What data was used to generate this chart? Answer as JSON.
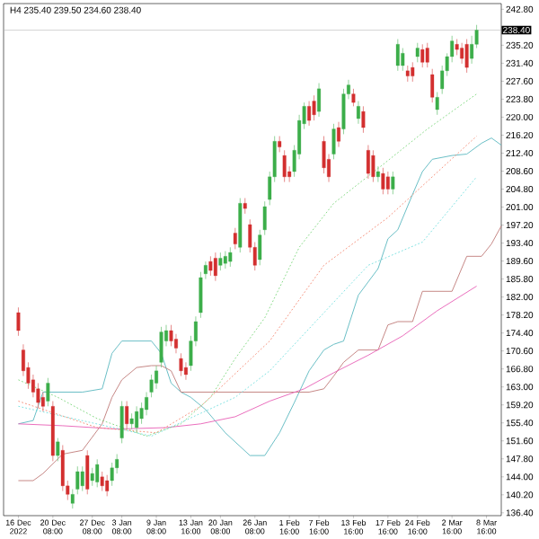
{
  "chart_data": {
    "type": "candlestick",
    "title": "H4 235.40 239.50 234.60 238.40",
    "categories": [
      "16 Dec 2022",
      null,
      null,
      null,
      null,
      null,
      null,
      "20 Dec 08:00",
      null,
      null,
      null,
      null,
      null,
      null,
      null,
      "27 Dec 08:00",
      null,
      null,
      null,
      null,
      null,
      "3 Jan 08:00",
      null,
      null,
      null,
      null,
      null,
      null,
      "9 Jan 08:00",
      null,
      null,
      null,
      null,
      null,
      null,
      "13 Jan 16:00",
      null,
      null,
      null,
      null,
      null,
      "20 Jan 08:00",
      null,
      null,
      null,
      null,
      null,
      null,
      "26 Jan 08:00",
      null,
      null,
      null,
      null,
      null,
      null,
      "1 Feb 16:00",
      null,
      null,
      null,
      null,
      null,
      "7 Feb 16:00",
      null,
      null,
      null,
      null,
      null,
      null,
      "13 Feb 16:00",
      null,
      null,
      null,
      null,
      null,
      null,
      "17 Feb 16:00",
      null,
      null,
      null,
      null,
      null,
      "24 Feb 16:00",
      null,
      null,
      null,
      null,
      null,
      null,
      "2 Mar 16:00",
      null,
      null,
      null,
      null,
      null,
      null,
      "8 Mar 16:00",
      null,
      null,
      null
    ],
    "ohlc": [
      [
        178.7,
        179.8,
        173.8,
        174.9
      ],
      [
        170.8,
        172.0,
        165.3,
        166.4
      ],
      [
        167.1,
        168.2,
        162.6,
        163.8
      ],
      [
        164.5,
        165.6,
        160.8,
        161.9
      ],
      [
        162.6,
        163.8,
        158.5,
        159.7
      ],
      [
        160.8,
        161.9,
        157.8,
        158.9
      ],
      [
        160.0,
        164.9,
        158.9,
        163.8
      ],
      [
        158.9,
        160.0,
        147.3,
        148.5
      ],
      [
        148.5,
        152.2,
        147.3,
        151.4
      ],
      [
        149.6,
        150.7,
        141.0,
        142.1
      ],
      [
        142.1,
        143.2,
        139.1,
        140.3
      ],
      [
        138.4,
        141.4,
        137.3,
        140.3
      ],
      [
        141.4,
        146.2,
        140.3,
        145.1
      ],
      [
        142.1,
        146.2,
        141.0,
        145.1
      ],
      [
        148.5,
        149.6,
        140.3,
        141.4
      ],
      [
        143.2,
        145.9,
        142.1,
        144.7
      ],
      [
        142.9,
        147.7,
        141.8,
        146.6
      ],
      [
        144.0,
        145.1,
        141.0,
        142.1
      ],
      [
        143.2,
        144.4,
        139.9,
        141.0
      ],
      [
        143.2,
        147.0,
        142.1,
        145.9
      ],
      [
        145.9,
        148.8,
        144.7,
        147.7
      ],
      [
        152.2,
        160.0,
        151.1,
        158.9
      ],
      [
        158.9,
        160.0,
        154.1,
        155.2
      ],
      [
        155.2,
        157.4,
        154.1,
        156.3
      ],
      [
        154.4,
        158.9,
        153.3,
        157.8
      ],
      [
        156.3,
        159.7,
        155.2,
        158.5
      ],
      [
        158.2,
        161.9,
        157.0,
        160.8
      ],
      [
        161.9,
        165.6,
        160.8,
        164.5
      ],
      [
        163.8,
        167.5,
        162.6,
        166.4
      ],
      [
        168.2,
        175.7,
        167.1,
        174.6
      ],
      [
        172.7,
        176.1,
        171.6,
        174.9
      ],
      [
        174.9,
        176.1,
        171.6,
        172.7
      ],
      [
        173.1,
        174.2,
        170.1,
        171.2
      ],
      [
        169.0,
        170.1,
        165.3,
        166.4
      ],
      [
        167.1,
        168.2,
        164.5,
        165.6
      ],
      [
        167.5,
        173.8,
        166.4,
        172.7
      ],
      [
        172.7,
        177.9,
        171.6,
        176.8
      ],
      [
        178.7,
        187.3,
        177.6,
        186.1
      ],
      [
        186.9,
        189.5,
        185.8,
        188.7
      ],
      [
        189.5,
        190.6,
        186.5,
        187.6
      ],
      [
        190.2,
        191.4,
        185.4,
        186.5
      ],
      [
        188.7,
        191.4,
        187.6,
        190.2
      ],
      [
        189.1,
        191.7,
        188.0,
        190.6
      ],
      [
        189.5,
        192.5,
        188.4,
        191.4
      ],
      [
        195.5,
        196.6,
        192.1,
        193.2
      ],
      [
        192.5,
        202.9,
        191.4,
        201.8
      ],
      [
        201.8,
        202.9,
        199.6,
        200.7
      ],
      [
        197.3,
        198.4,
        191.4,
        192.5
      ],
      [
        192.5,
        193.6,
        187.6,
        188.7
      ],
      [
        189.9,
        196.2,
        188.7,
        195.1
      ],
      [
        196.2,
        202.2,
        195.1,
        201.1
      ],
      [
        202.6,
        208.5,
        201.4,
        207.4
      ],
      [
        207.4,
        216.0,
        206.3,
        214.9
      ],
      [
        214.9,
        216.0,
        212.6,
        213.7
      ],
      [
        211.9,
        213.0,
        206.3,
        207.4
      ],
      [
        208.5,
        209.6,
        206.3,
        207.4
      ],
      [
        208.5,
        214.1,
        207.4,
        213.0
      ],
      [
        212.2,
        220.5,
        211.1,
        219.3
      ],
      [
        218.6,
        223.1,
        217.5,
        222.3
      ],
      [
        222.3,
        223.4,
        218.2,
        219.3
      ],
      [
        223.4,
        224.6,
        219.3,
        220.5
      ],
      [
        221.2,
        227.2,
        220.1,
        226.0
      ],
      [
        214.9,
        216.0,
        208.1,
        209.3
      ],
      [
        211.1,
        212.2,
        206.3,
        207.4
      ],
      [
        212.2,
        218.6,
        211.1,
        217.5
      ],
      [
        217.8,
        219.0,
        213.7,
        214.9
      ],
      [
        217.5,
        226.0,
        216.4,
        224.9
      ],
      [
        224.9,
        227.9,
        223.8,
        226.8
      ],
      [
        224.9,
        226.0,
        222.3,
        223.1
      ],
      [
        219.7,
        223.4,
        218.6,
        222.3
      ],
      [
        221.2,
        222.3,
        216.7,
        217.8
      ],
      [
        213.0,
        214.1,
        207.0,
        208.1
      ],
      [
        211.9,
        213.0,
        206.3,
        207.4
      ],
      [
        207.4,
        209.6,
        206.3,
        208.5
      ],
      [
        208.1,
        209.3,
        203.7,
        204.8
      ],
      [
        207.4,
        208.5,
        203.7,
        204.8
      ],
      [
        204.8,
        208.5,
        203.7,
        207.4
      ],
      [
        230.9,
        236.5,
        229.8,
        235.4
      ],
      [
        230.9,
        234.6,
        229.8,
        233.5
      ],
      [
        229.8,
        230.9,
        227.5,
        228.7
      ],
      [
        230.5,
        231.6,
        227.5,
        228.7
      ],
      [
        232.8,
        235.7,
        231.6,
        234.6
      ],
      [
        234.3,
        235.4,
        230.5,
        231.6
      ],
      [
        234.6,
        235.7,
        230.5,
        231.6
      ],
      [
        229.0,
        230.2,
        223.1,
        224.2
      ],
      [
        221.6,
        225.3,
        220.5,
        224.2
      ],
      [
        226.0,
        230.9,
        224.9,
        229.8
      ],
      [
        229.8,
        233.5,
        228.7,
        232.8
      ],
      [
        232.8,
        237.2,
        231.6,
        236.1
      ],
      [
        235.4,
        236.5,
        233.1,
        234.3
      ],
      [
        234.6,
        235.7,
        231.3,
        232.4
      ],
      [
        235.4,
        236.5,
        229.4,
        230.5
      ],
      [
        232.4,
        237.2,
        231.3,
        235.4
      ],
      [
        235.4,
        239.5,
        234.6,
        238.4
      ],
      null,
      null,
      null,
      null,
      null
    ],
    "colors": [
      "#d32f2f",
      "#d32f2f",
      "#d32f2f",
      "#d32f2f",
      "#d32f2f",
      "#d32f2f",
      "#3cae4a",
      "#d32f2f",
      "#3cae4a",
      "#d32f2f",
      "#d32f2f",
      "#3cae4a",
      "#3cae4a",
      "#3cae4a",
      "#d32f2f",
      "#3cae4a",
      "#3cae4a",
      "#d32f2f",
      "#d32f2f",
      "#3cae4a",
      "#3cae4a",
      "#3cae4a",
      "#d32f2f",
      "#3cae4a",
      "#3cae4a",
      "#3cae4a",
      "#3cae4a",
      "#3cae4a",
      "#3cae4a",
      "#3cae4a",
      "#3cae4a",
      "#d32f2f",
      "#d32f2f",
      "#d32f2f",
      "#d32f2f",
      "#3cae4a",
      "#3cae4a",
      "#3cae4a",
      "#3cae4a",
      "#d32f2f",
      "#d32f2f",
      "#3cae4a",
      "#3cae4a",
      "#3cae4a",
      "#d32f2f",
      "#3cae4a",
      "#d32f2f",
      "#d32f2f",
      "#d32f2f",
      "#3cae4a",
      "#3cae4a",
      "#3cae4a",
      "#3cae4a",
      "#d32f2f",
      "#d32f2f",
      "#d32f2f",
      "#3cae4a",
      "#3cae4a",
      "#3cae4a",
      "#d32f2f",
      "#d32f2f",
      "#3cae4a",
      "#d32f2f",
      "#d32f2f",
      "#3cae4a",
      "#d32f2f",
      "#3cae4a",
      "#3cae4a",
      "#d32f2f",
      "#3cae4a",
      "#d32f2f",
      "#d32f2f",
      "#d32f2f",
      "#3cae4a",
      "#d32f2f",
      "#d32f2f",
      "#3cae4a",
      "#3cae4a",
      "#3cae4a",
      "#d32f2f",
      "#d32f2f",
      "#3cae4a",
      "#d32f2f",
      "#d32f2f",
      "#d32f2f",
      "#3cae4a",
      "#3cae4a",
      "#3cae4a",
      "#3cae4a",
      "#d32f2f",
      "#d32f2f",
      "#d32f2f",
      "#3cae4a",
      "#3cae4a",
      null,
      null,
      null,
      null,
      null
    ],
    "series": [
      {
        "type": "line",
        "color": "#5ab8c0",
        "values": [
          155.2,
          null,
          null,
          155.9,
          null,
          161.9,
          null,
          null,
          null,
          161.9,
          null,
          null,
          null,
          161.9,
          null,
          null,
          null,
          162.6,
          null,
          170.1,
          null,
          172.7,
          null,
          null,
          172.7,
          null,
          null,
          172.7,
          null,
          170.1,
          null,
          163.8,
          null,
          161.9,
          null,
          160.8,
          null,
          null,
          158.2,
          null,
          null,
          null,
          153.3,
          null,
          null,
          null,
          null,
          148.5,
          null,
          null,
          148.5,
          null,
          null,
          153.3,
          null,
          null,
          159.7,
          null,
          null,
          166.4,
          null,
          null,
          170.8,
          null,
          172.0,
          null,
          172.7,
          null,
          null,
          182.4,
          null,
          null,
          null,
          188.0,
          null,
          194.3,
          null,
          196.2,
          null,
          null,
          203.7,
          null,
          208.5,
          null,
          211.1,
          null,
          null,
          null,
          211.9,
          null,
          null,
          212.2,
          null,
          null,
          214.5,
          null,
          215.6,
          null,
          214.1
        ]
      },
      {
        "type": "line",
        "color": "#c07a78",
        "values": [
          143.2,
          null,
          null,
          143.2,
          null,
          144.7,
          null,
          null,
          null,
          148.8,
          null,
          null,
          null,
          149.6,
          null,
          null,
          null,
          155.2,
          null,
          160.8,
          null,
          164.5,
          null,
          null,
          167.1,
          null,
          null,
          167.5,
          null,
          167.5,
          null,
          166.4,
          null,
          161.9,
          null,
          161.9,
          null,
          null,
          161.9,
          null,
          null,
          null,
          161.9,
          null,
          null,
          null,
          null,
          161.9,
          null,
          null,
          161.9,
          null,
          null,
          161.9,
          null,
          null,
          161.9,
          null,
          null,
          161.9,
          null,
          null,
          162.6,
          null,
          165.3,
          null,
          168.2,
          null,
          null,
          170.8,
          null,
          null,
          null,
          170.8,
          null,
          176.1,
          null,
          176.8,
          null,
          null,
          176.8,
          null,
          183.2,
          null,
          183.2,
          null,
          null,
          null,
          183.2,
          null,
          null,
          190.6,
          null,
          null,
          190.6,
          null,
          193.2,
          null,
          197.0
        ]
      },
      {
        "type": "line",
        "color": "#e85fb5",
        "line_style": "solid",
        "values": [
          155.2,
          null,
          null,
          null,
          null,
          null,
          null,
          null,
          null,
          154.8,
          null,
          null,
          null,
          null,
          null,
          null,
          null,
          null,
          null,
          null,
          154.1,
          null,
          null,
          null,
          null,
          null,
          null,
          null,
          null,
          null,
          154.4,
          null,
          null,
          null,
          null,
          null,
          null,
          155.2,
          null,
          null,
          null,
          null,
          null,
          null,
          156.7,
          null,
          null,
          null,
          null,
          null,
          null,
          160.0,
          null,
          null,
          null,
          null,
          null,
          null,
          162.6,
          null,
          null,
          null,
          null,
          null,
          166.0,
          null,
          null,
          null,
          null,
          null,
          null,
          169.7,
          null,
          null,
          null,
          null,
          null,
          null,
          173.8,
          null,
          null,
          null,
          null,
          null,
          null,
          179.1,
          null,
          null,
          null,
          null,
          null,
          null,
          null,
          184.3,
          null,
          null,
          null,
          null,
          null
        ]
      },
      {
        "type": "line",
        "color": "#7ad67a",
        "line_style": "dotted",
        "values": [
          164.5,
          null,
          null,
          null,
          null,
          null,
          null,
          null,
          160.8,
          null,
          null,
          null,
          null,
          null,
          null,
          null,
          156.3,
          null,
          null,
          null,
          null,
          null,
          null,
          null,
          null,
          null,
          152.6,
          null,
          null,
          null,
          null,
          null,
          null,
          155.2,
          null,
          null,
          null,
          null,
          null,
          160.8,
          null,
          null,
          null,
          null,
          169.0,
          null,
          null,
          null,
          null,
          null,
          177.6,
          null,
          null,
          null,
          null,
          null,
          null,
          192.5,
          null,
          null,
          null,
          null,
          null,
          null,
          201.8,
          null,
          null,
          null,
          null,
          null,
          null,
          null,
          null,
          null,
          210.0,
          null,
          null,
          null,
          null,
          null,
          null,
          null,
          null,
          217.5,
          null,
          null,
          null,
          null,
          null,
          null,
          null,
          null,
          null,
          224.9,
          null,
          null,
          null,
          null,
          null
        ]
      },
      {
        "type": "line",
        "color": "#f4866e",
        "line_style": "dotted",
        "values": [
          160.0,
          null,
          null,
          null,
          null,
          null,
          null,
          null,
          null,
          null,
          null,
          null,
          null,
          null,
          null,
          null,
          154.4,
          null,
          null,
          null,
          null,
          null,
          null,
          null,
          null,
          null,
          null,
          null,
          153.3,
          null,
          null,
          null,
          null,
          null,
          null,
          null,
          null,
          158.9,
          null,
          null,
          null,
          null,
          null,
          null,
          null,
          null,
          null,
          null,
          null,
          null,
          null,
          172.7,
          null,
          null,
          null,
          null,
          null,
          null,
          null,
          null,
          null,
          null,
          188.7,
          null,
          null,
          null,
          null,
          null,
          null,
          null,
          null,
          null,
          null,
          null,
          null,
          198.8,
          null,
          null,
          null,
          null,
          null,
          null,
          null,
          null,
          207.4,
          null,
          null,
          null,
          null,
          null,
          null,
          null,
          null,
          216.0,
          null,
          null,
          null,
          null,
          null
        ]
      },
      {
        "type": "line",
        "color": "#6fdede",
        "line_style": "dotted",
        "values": [
          158.9,
          null,
          null,
          null,
          null,
          null,
          null,
          null,
          null,
          null,
          null,
          null,
          null,
          null,
          null,
          null,
          null,
          null,
          null,
          null,
          null,
          null,
          null,
          null,
          null,
          null,
          null,
          152.6,
          null,
          null,
          null,
          null,
          null,
          null,
          null,
          null,
          null,
          null,
          null,
          null,
          null,
          null,
          null,
          null,
          160.8,
          null,
          null,
          null,
          null,
          null,
          null,
          166.4,
          null,
          null,
          null,
          null,
          null,
          null,
          null,
          null,
          null,
          null,
          null,
          null,
          null,
          null,
          null,
          null,
          null,
          null,
          null,
          188.7,
          null,
          null,
          null,
          null,
          null,
          null,
          null,
          null,
          null,
          null,
          193.6,
          null,
          null,
          null,
          null,
          null,
          null,
          null,
          null,
          null,
          null,
          207.4,
          null,
          null,
          null,
          null,
          null
        ]
      }
    ],
    "ylim": [
      135.8,
      244.0
    ],
    "yticks": [
      {
        "value": 136.4,
        "label": "136.40"
      },
      {
        "value": 140.2,
        "label": "140.20"
      },
      {
        "value": 144.0,
        "label": "144.00"
      },
      {
        "value": 147.8,
        "label": "147.80"
      },
      {
        "value": 151.6,
        "label": "151.60"
      },
      {
        "value": 155.4,
        "label": "155.40"
      },
      {
        "value": 159.2,
        "label": "159.20"
      },
      {
        "value": 163.0,
        "label": "163.00"
      },
      {
        "value": 166.8,
        "label": "166.80"
      },
      {
        "value": 170.6,
        "label": "170.60"
      },
      {
        "value": 174.4,
        "label": "174.40"
      },
      {
        "value": 178.2,
        "label": "178.20"
      },
      {
        "value": 182.0,
        "label": "182.00"
      },
      {
        "value": 185.8,
        "label": "185.80"
      },
      {
        "value": 189.6,
        "label": "189.60"
      },
      {
        "value": 193.4,
        "label": "193.40"
      },
      {
        "value": 197.2,
        "label": "197.20"
      },
      {
        "value": 201.0,
        "label": "201.00"
      },
      {
        "value": 204.8,
        "label": "204.80"
      },
      {
        "value": 208.6,
        "label": "208.60"
      },
      {
        "value": 212.4,
        "label": "212.40"
      },
      {
        "value": 216.2,
        "label": "216.20"
      },
      {
        "value": 220.0,
        "label": "220.00"
      },
      {
        "value": 223.8,
        "label": "223.80"
      },
      {
        "value": 227.6,
        "label": "227.60"
      },
      {
        "value": 231.4,
        "label": "231.40"
      },
      {
        "value": 235.2,
        "label": "235.20"
      },
      {
        "value": 239.0,
        "label": null
      },
      {
        "value": 242.8,
        "label": "242.80"
      }
    ],
    "ref_lines": [
      {
        "axis": "y",
        "value": 238.4,
        "label": "238.40",
        "color": "#b8b8b8"
      }
    ]
  }
}
